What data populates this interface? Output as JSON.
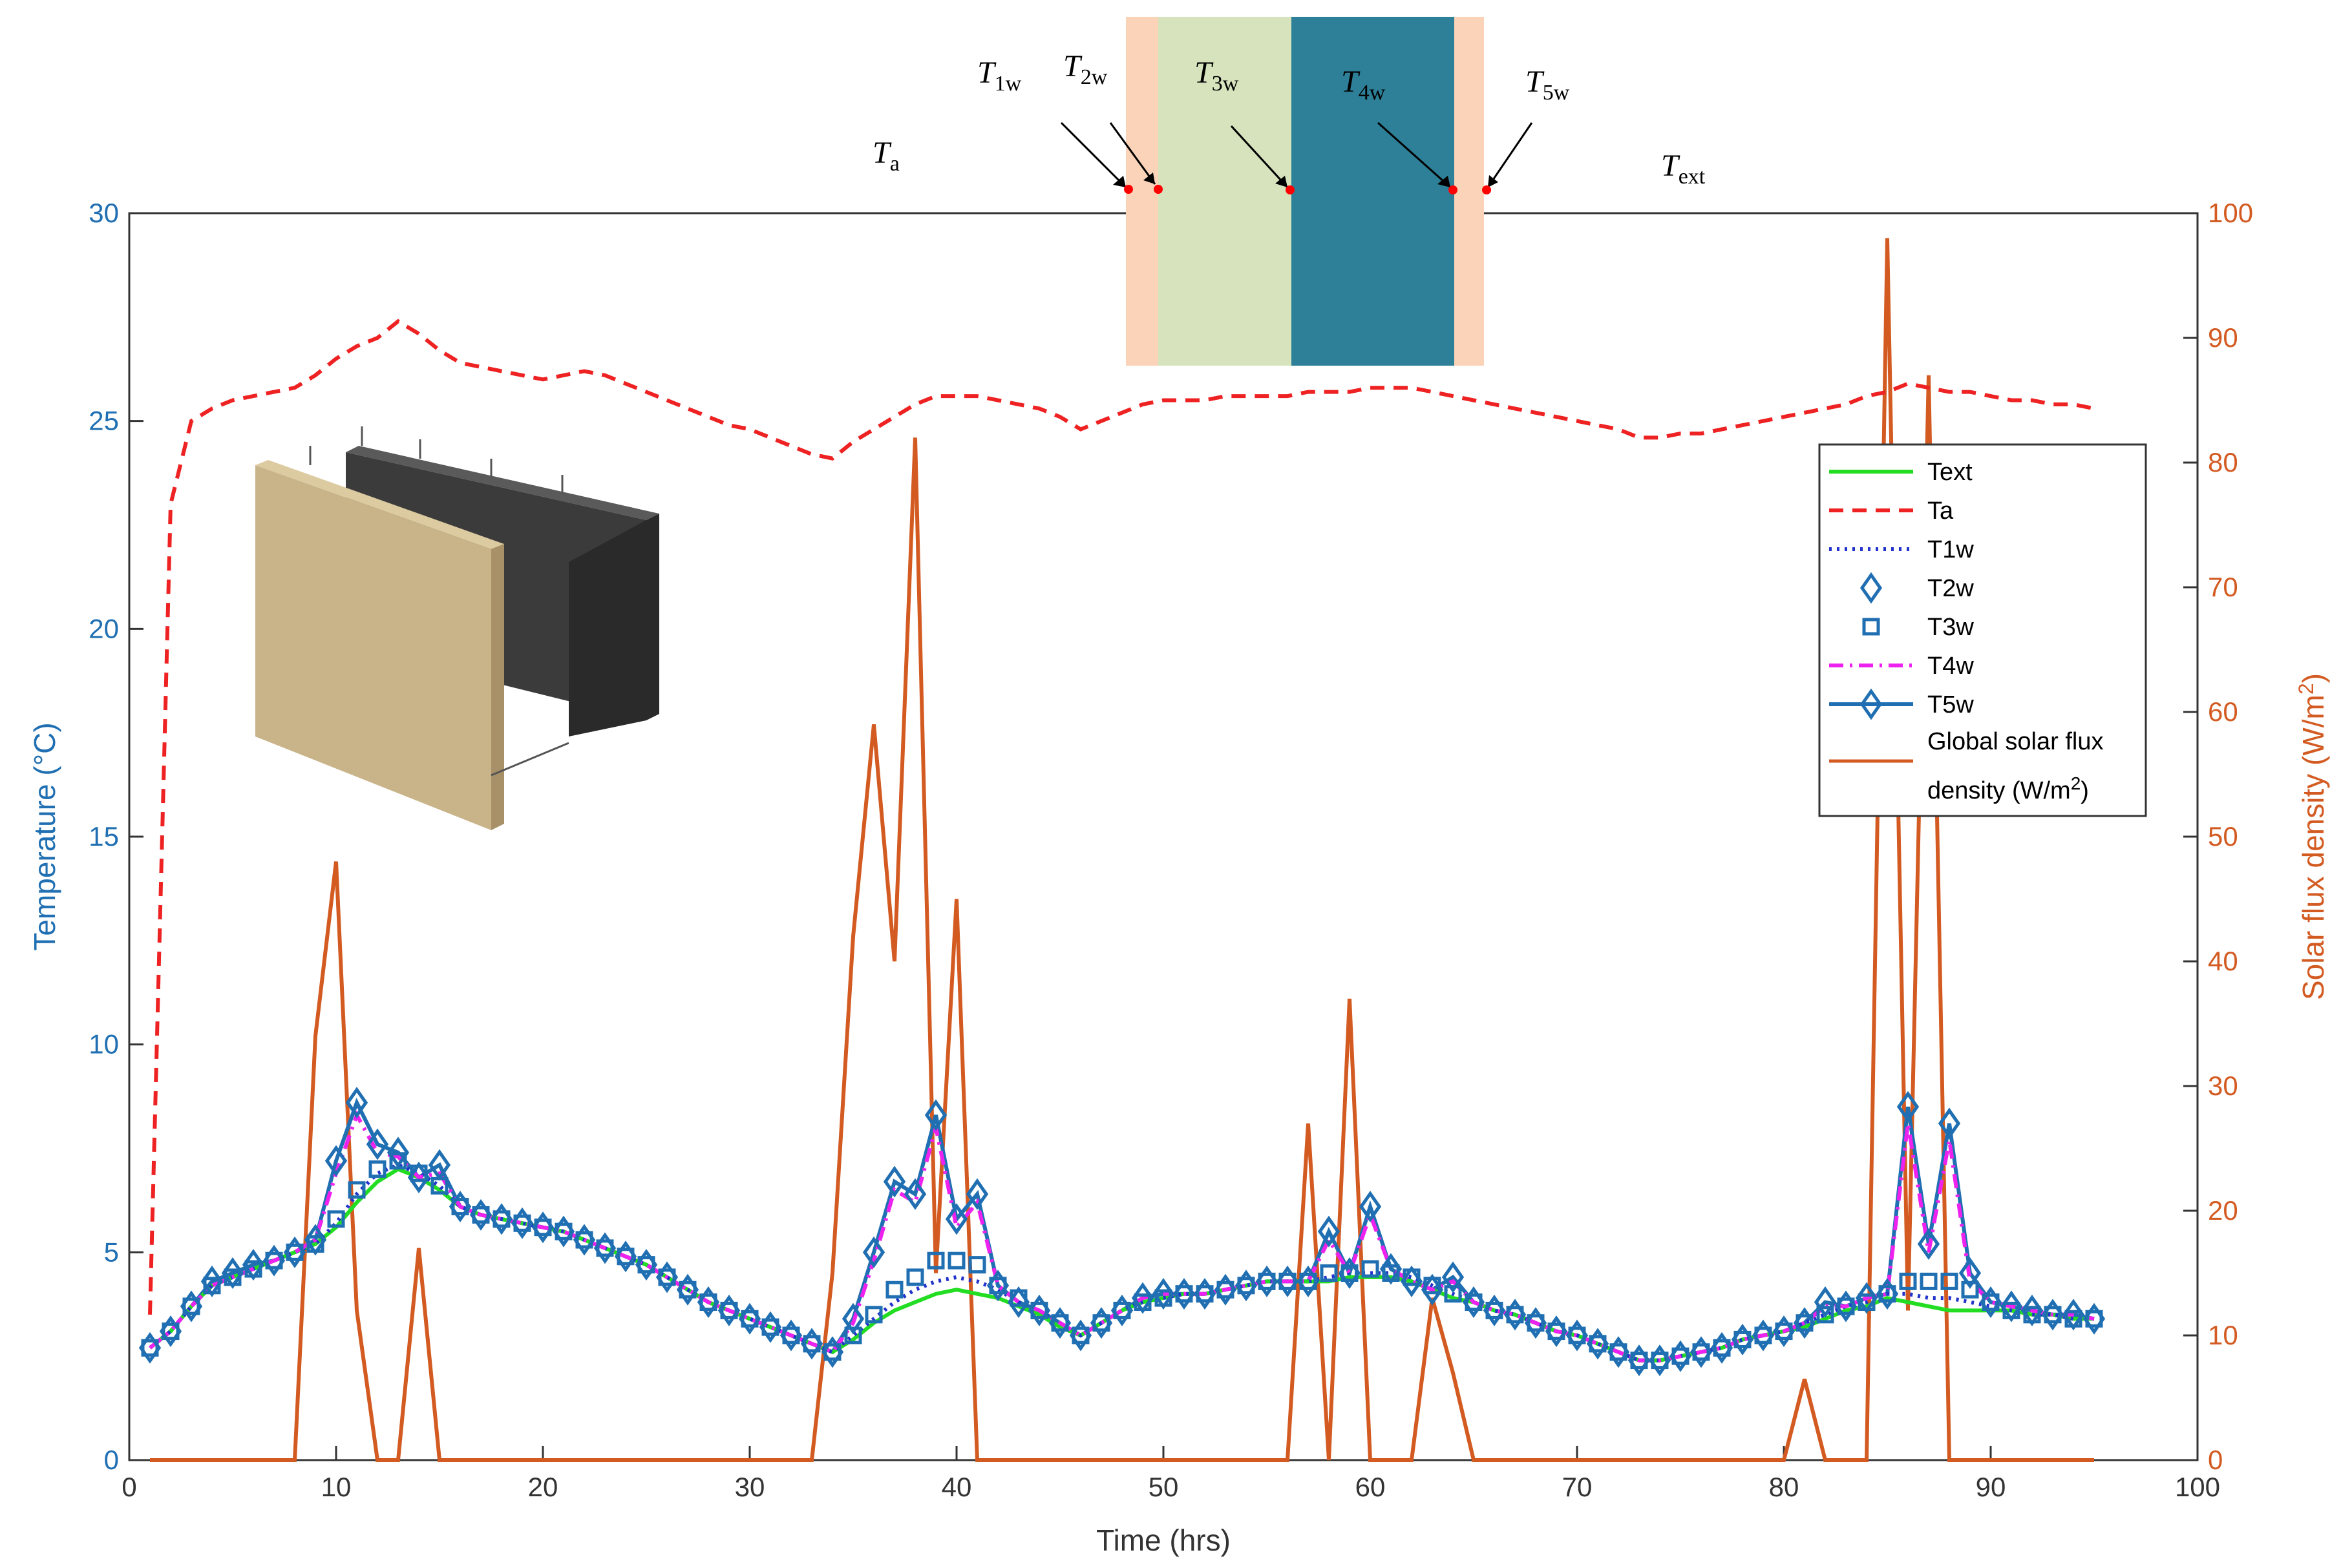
{
  "chart_data": {
    "type": "line",
    "xlabel": "Time (hrs)",
    "ylabel": "Temperature (°C)",
    "y2label": "Solar flux density (W/m²)",
    "y2label_parts": {
      "base": "Solar flux density (W/m",
      "sup": "2",
      "tail": ")"
    },
    "xlim": [
      0,
      100
    ],
    "ylim": [
      0,
      30
    ],
    "y2lim": [
      0,
      100
    ],
    "xticks": [
      0,
      10,
      20,
      30,
      40,
      50,
      60,
      70,
      80,
      90,
      100
    ],
    "yticks": [
      0,
      5,
      10,
      15,
      20,
      25,
      30
    ],
    "y2ticks": [
      0,
      10,
      20,
      30,
      40,
      50,
      60,
      70,
      80,
      90,
      100
    ],
    "grid": false,
    "legend_position": "right",
    "colors": {
      "temp_axis": "#1f6fb2",
      "solar_axis": "#d35b22",
      "text_line": "#22dd22",
      "ta_line": "#ee2222",
      "t1w_line": "#2233cc",
      "t4w_line": "#ee22ee",
      "t2w_t3w_t5w_markers": "#1f6fb2"
    },
    "x": [
      1,
      2,
      3,
      4,
      5,
      6,
      7,
      8,
      9,
      10,
      11,
      12,
      13,
      14,
      15,
      16,
      17,
      18,
      19,
      20,
      21,
      22,
      23,
      24,
      25,
      26,
      27,
      28,
      29,
      30,
      31,
      32,
      33,
      34,
      35,
      36,
      37,
      38,
      39,
      40,
      41,
      42,
      43,
      44,
      45,
      46,
      47,
      48,
      49,
      50,
      51,
      52,
      53,
      54,
      55,
      56,
      57,
      58,
      59,
      60,
      61,
      62,
      63,
      64,
      65,
      66,
      67,
      68,
      69,
      70,
      71,
      72,
      73,
      74,
      75,
      76,
      77,
      78,
      79,
      80,
      81,
      82,
      83,
      84,
      85,
      86,
      87,
      88,
      89,
      90,
      91,
      92,
      93,
      94,
      95
    ],
    "series": [
      {
        "name": "Text",
        "axis": "left",
        "style": "solid",
        "values": [
          2.7,
          3.1,
          3.7,
          4.2,
          4.4,
          4.6,
          4.8,
          5.0,
          5.2,
          5.6,
          6.2,
          6.7,
          7.0,
          6.8,
          6.5,
          6.1,
          5.9,
          5.8,
          5.7,
          5.6,
          5.5,
          5.3,
          5.1,
          4.9,
          4.7,
          4.4,
          4.1,
          3.8,
          3.6,
          3.4,
          3.2,
          3.0,
          2.8,
          2.6,
          2.9,
          3.3,
          3.6,
          3.8,
          4.0,
          4.1,
          4.0,
          3.9,
          3.7,
          3.5,
          3.2,
          3.0,
          3.3,
          3.6,
          3.8,
          3.9,
          4.0,
          4.0,
          4.1,
          4.2,
          4.3,
          4.3,
          4.3,
          4.3,
          4.4,
          4.4,
          4.4,
          4.3,
          4.1,
          3.9,
          3.8,
          3.6,
          3.5,
          3.3,
          3.1,
          3.0,
          2.8,
          2.6,
          2.4,
          2.4,
          2.5,
          2.6,
          2.7,
          2.9,
          3.0,
          3.1,
          3.2,
          3.4,
          3.6,
          3.7,
          3.9,
          3.8,
          3.7,
          3.6,
          3.6,
          3.6,
          3.6,
          3.5,
          3.5,
          3.4,
          3.4
        ]
      },
      {
        "name": "Ta",
        "axis": "left",
        "style": "dashed",
        "values": [
          3.5,
          23.0,
          25.0,
          25.3,
          25.5,
          25.6,
          25.7,
          25.8,
          26.1,
          26.5,
          26.8,
          27.0,
          27.4,
          27.1,
          26.7,
          26.4,
          26.3,
          26.2,
          26.1,
          26.0,
          26.1,
          26.2,
          26.1,
          25.9,
          25.7,
          25.5,
          25.3,
          25.1,
          24.9,
          24.8,
          24.6,
          24.4,
          24.2,
          24.1,
          24.5,
          24.8,
          25.1,
          25.4,
          25.6,
          25.6,
          25.6,
          25.5,
          25.4,
          25.3,
          25.1,
          24.8,
          25.0,
          25.2,
          25.4,
          25.5,
          25.5,
          25.5,
          25.6,
          25.6,
          25.6,
          25.6,
          25.7,
          25.7,
          25.7,
          25.8,
          25.8,
          25.8,
          25.7,
          25.6,
          25.5,
          25.4,
          25.3,
          25.2,
          25.1,
          25.0,
          24.9,
          24.8,
          24.6,
          24.6,
          24.7,
          24.7,
          24.8,
          24.9,
          25.0,
          25.1,
          25.2,
          25.3,
          25.4,
          25.6,
          25.7,
          25.9,
          25.8,
          25.7,
          25.7,
          25.6,
          25.5,
          25.5,
          25.4,
          25.4,
          25.3
        ]
      },
      {
        "name": "T1w",
        "axis": "left",
        "style": "dotted",
        "values": [
          2.7,
          3.1,
          3.7,
          4.2,
          4.4,
          4.6,
          4.8,
          5.0,
          5.2,
          5.7,
          6.4,
          6.9,
          7.1,
          6.9,
          6.6,
          6.1,
          5.9,
          5.8,
          5.7,
          5.6,
          5.5,
          5.3,
          5.1,
          4.9,
          4.7,
          4.4,
          4.1,
          3.8,
          3.6,
          3.4,
          3.2,
          3.0,
          2.8,
          2.6,
          3.0,
          3.4,
          3.8,
          4.1,
          4.3,
          4.4,
          4.3,
          4.1,
          3.8,
          3.6,
          3.3,
          3.0,
          3.3,
          3.6,
          3.8,
          3.9,
          4.0,
          4.0,
          4.1,
          4.2,
          4.3,
          4.3,
          4.3,
          4.4,
          4.5,
          4.5,
          4.5,
          4.4,
          4.2,
          4.0,
          3.8,
          3.6,
          3.5,
          3.3,
          3.1,
          3.0,
          2.8,
          2.6,
          2.4,
          2.4,
          2.5,
          2.6,
          2.7,
          2.9,
          3.0,
          3.1,
          3.3,
          3.5,
          3.7,
          3.8,
          4.0,
          4.0,
          3.9,
          3.9,
          3.8,
          3.7,
          3.6,
          3.5,
          3.5,
          3.4,
          3.4
        ]
      },
      {
        "name": "T2w",
        "axis": "left",
        "style": "marker-diamond",
        "values": [
          2.7,
          3.1,
          3.7,
          4.3,
          4.5,
          4.7,
          4.8,
          5.0,
          5.3,
          7.2,
          8.6,
          7.6,
          7.4,
          6.8,
          7.1,
          6.1,
          5.9,
          5.8,
          5.7,
          5.6,
          5.5,
          5.3,
          5.1,
          4.9,
          4.7,
          4.4,
          4.1,
          3.8,
          3.6,
          3.4,
          3.2,
          3.0,
          2.8,
          2.6,
          3.4,
          5.0,
          6.7,
          6.4,
          8.3,
          5.8,
          6.4,
          4.2,
          3.8,
          3.6,
          3.3,
          3.0,
          3.3,
          3.6,
          3.9,
          4.0,
          4.0,
          4.0,
          4.1,
          4.2,
          4.3,
          4.3,
          4.3,
          5.5,
          4.5,
          6.1,
          4.6,
          4.3,
          4.1,
          4.4,
          3.8,
          3.6,
          3.5,
          3.3,
          3.1,
          3.0,
          2.8,
          2.6,
          2.4,
          2.4,
          2.5,
          2.6,
          2.7,
          2.9,
          3.0,
          3.1,
          3.3,
          3.8,
          3.7,
          3.9,
          4.0,
          8.5,
          5.2,
          8.1,
          4.5,
          3.8,
          3.7,
          3.6,
          3.5,
          3.5,
          3.4
        ]
      },
      {
        "name": "T3w",
        "axis": "left",
        "style": "marker-square",
        "values": [
          2.7,
          3.1,
          3.7,
          4.2,
          4.4,
          4.6,
          4.8,
          5.0,
          5.2,
          5.8,
          6.5,
          7.0,
          7.2,
          6.9,
          6.6,
          6.1,
          5.9,
          5.8,
          5.7,
          5.6,
          5.5,
          5.3,
          5.1,
          4.9,
          4.7,
          4.4,
          4.1,
          3.8,
          3.6,
          3.4,
          3.2,
          3.0,
          2.8,
          2.6,
          3.0,
          3.5,
          4.1,
          4.4,
          4.8,
          4.8,
          4.7,
          4.2,
          3.9,
          3.6,
          3.3,
          3.0,
          3.3,
          3.6,
          3.8,
          3.9,
          4.0,
          4.0,
          4.1,
          4.2,
          4.3,
          4.3,
          4.3,
          4.5,
          4.5,
          4.6,
          4.5,
          4.4,
          4.2,
          4.0,
          3.8,
          3.6,
          3.5,
          3.3,
          3.1,
          3.0,
          2.8,
          2.6,
          2.4,
          2.4,
          2.5,
          2.6,
          2.7,
          2.9,
          3.0,
          3.1,
          3.3,
          3.5,
          3.7,
          3.8,
          4.0,
          4.3,
          4.3,
          4.3,
          4.1,
          3.8,
          3.6,
          3.5,
          3.5,
          3.4,
          3.4
        ]
      },
      {
        "name": "T4w",
        "axis": "left",
        "style": "dashdot",
        "values": [
          2.7,
          3.1,
          3.7,
          4.2,
          4.4,
          4.6,
          4.8,
          5.0,
          5.3,
          6.9,
          8.3,
          7.4,
          7.3,
          6.8,
          6.9,
          6.1,
          5.9,
          5.8,
          5.7,
          5.6,
          5.5,
          5.3,
          5.1,
          4.9,
          4.7,
          4.4,
          4.1,
          3.8,
          3.6,
          3.4,
          3.2,
          3.0,
          2.8,
          2.6,
          3.3,
          4.8,
          6.5,
          6.2,
          8.0,
          5.6,
          6.2,
          4.2,
          3.8,
          3.6,
          3.3,
          3.0,
          3.3,
          3.6,
          3.9,
          4.0,
          4.0,
          4.0,
          4.1,
          4.2,
          4.3,
          4.3,
          4.3,
          5.3,
          4.5,
          5.9,
          4.6,
          4.3,
          4.1,
          4.3,
          3.8,
          3.6,
          3.5,
          3.3,
          3.1,
          3.0,
          2.8,
          2.6,
          2.4,
          2.4,
          2.5,
          2.6,
          2.7,
          2.9,
          3.0,
          3.1,
          3.3,
          3.7,
          3.7,
          3.9,
          4.0,
          8.1,
          5.0,
          7.7,
          4.3,
          3.8,
          3.7,
          3.6,
          3.5,
          3.5,
          3.4
        ]
      },
      {
        "name": "T5w",
        "axis": "left",
        "style": "solid-diamond",
        "values": [
          2.7,
          3.1,
          3.7,
          4.3,
          4.5,
          4.7,
          4.8,
          5.0,
          5.3,
          7.2,
          8.6,
          7.6,
          7.4,
          6.8,
          7.1,
          6.1,
          5.9,
          5.8,
          5.7,
          5.6,
          5.5,
          5.3,
          5.1,
          4.9,
          4.7,
          4.4,
          4.1,
          3.8,
          3.6,
          3.4,
          3.2,
          3.0,
          2.8,
          2.6,
          3.4,
          5.0,
          6.7,
          6.4,
          8.3,
          5.8,
          6.4,
          4.2,
          3.8,
          3.6,
          3.3,
          3.0,
          3.3,
          3.6,
          3.9,
          4.0,
          4.0,
          4.0,
          4.1,
          4.2,
          4.3,
          4.3,
          4.3,
          5.5,
          4.5,
          6.1,
          4.6,
          4.3,
          4.1,
          4.4,
          3.8,
          3.6,
          3.5,
          3.3,
          3.1,
          3.0,
          2.8,
          2.6,
          2.4,
          2.4,
          2.5,
          2.6,
          2.7,
          2.9,
          3.0,
          3.1,
          3.3,
          3.8,
          3.7,
          3.9,
          4.0,
          8.5,
          5.2,
          8.1,
          4.5,
          3.8,
          3.7,
          3.6,
          3.5,
          3.5,
          3.4
        ]
      }
    ],
    "solar": {
      "name": "Global solar flux density (W/m²)",
      "axis": "right",
      "points": [
        [
          1,
          0
        ],
        [
          8,
          0
        ],
        [
          9,
          34
        ],
        [
          10,
          48
        ],
        [
          11,
          12
        ],
        [
          12,
          0
        ],
        [
          13,
          0
        ],
        [
          14,
          17
        ],
        [
          15,
          0
        ],
        [
          33,
          0
        ],
        [
          34,
          15
        ],
        [
          35,
          42
        ],
        [
          36,
          59
        ],
        [
          37,
          40
        ],
        [
          38,
          82
        ],
        [
          39,
          15
        ],
        [
          40,
          45
        ],
        [
          41,
          0
        ],
        [
          56,
          0
        ],
        [
          57,
          27
        ],
        [
          58,
          0
        ],
        [
          59,
          37
        ],
        [
          60,
          0
        ],
        [
          62,
          0
        ],
        [
          63,
          13
        ],
        [
          64,
          7
        ],
        [
          65,
          0
        ],
        [
          80,
          0
        ],
        [
          81,
          6.5
        ],
        [
          82,
          0
        ],
        [
          84,
          0
        ],
        [
          85,
          98
        ],
        [
          86,
          12
        ],
        [
          87,
          87
        ],
        [
          88,
          0
        ],
        [
          95,
          0
        ]
      ]
    }
  },
  "legend": {
    "items": [
      {
        "label": "Text",
        "style": "solid-green"
      },
      {
        "label": "Ta",
        "style": "dashed-red"
      },
      {
        "label": "T1w",
        "style": "dotted-blue"
      },
      {
        "label": "T2w",
        "style": "diamond"
      },
      {
        "label": "T3w",
        "style": "square"
      },
      {
        "label": "T4w",
        "style": "dashdot-magenta"
      },
      {
        "label": "T5w",
        "style": "line-diamond"
      }
    ],
    "solar_label_line1": "Global solar flux",
    "solar_label_line2_base": "density (W/m",
    "solar_label_line2_sup": "2",
    "solar_label_line2_tail": ")"
  },
  "wall_diagram": {
    "labels": [
      {
        "base": "T",
        "sub": "1w"
      },
      {
        "base": "T",
        "sub": "2w"
      },
      {
        "base": "T",
        "sub": "3w"
      },
      {
        "base": "T",
        "sub": "4w"
      },
      {
        "base": "T",
        "sub": "5w"
      },
      {
        "base": "T",
        "sub": "a"
      },
      {
        "base": "T",
        "sub": "ext"
      }
    ],
    "layer_colors": [
      "#fad3b8",
      "#d6e3bd",
      "#2e8098",
      "#fad3b8"
    ],
    "sensor_color": "#ff0000"
  },
  "wall_photo": {
    "icon": "hempcrete-wall-icon",
    "colors": {
      "hemp": "#c9b48a",
      "concrete": "#3a3a3a"
    }
  }
}
